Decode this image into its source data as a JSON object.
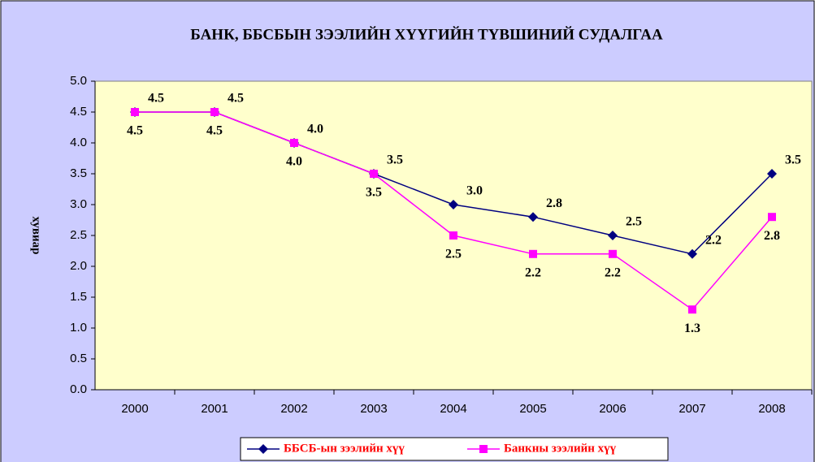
{
  "chart_data": {
    "type": "line",
    "title": "БАНК, ББСБЫН ЗЭЭЛИЙН ХҮҮГИЙН ТҮВШИНИЙ СУДАЛГАА",
    "y_label": "хувиар",
    "categories": [
      "2000",
      "2001",
      "2002",
      "2003",
      "2004",
      "2005",
      "2006",
      "2007",
      "2008"
    ],
    "series": [
      {
        "name": "ББСБ-ын зээлийн хүү",
        "color": "#000080",
        "marker": "diamond",
        "values": [
          4.5,
          4.5,
          4.0,
          3.5,
          3.0,
          2.8,
          2.5,
          2.2,
          3.5
        ],
        "value_labels": [
          "4.5",
          "4.5",
          "4.0",
          "3.5",
          "3.0",
          "2.8",
          "2.5",
          "2.2",
          "3.5"
        ]
      },
      {
        "name": "Банкны зээлийн хүү",
        "color": "#ff00ff",
        "marker": "square",
        "values": [
          4.5,
          4.5,
          4.0,
          3.5,
          2.5,
          2.2,
          2.2,
          1.3,
          2.8
        ],
        "value_labels": [
          "4.5",
          "4.5",
          "4.0",
          "3.5",
          "2.5",
          "2.2",
          "2.2",
          "1.3",
          "2.8"
        ]
      }
    ],
    "ylim": [
      0,
      5
    ],
    "yticks": [
      {
        "value": 0,
        "label": "0.0"
      },
      {
        "value": 0.5,
        "label": "0.5"
      },
      {
        "value": 1,
        "label": "1.0"
      },
      {
        "value": 1.5,
        "label": "1.5"
      },
      {
        "value": 2,
        "label": "2.0"
      },
      {
        "value": 2.5,
        "label": "2.5"
      },
      {
        "value": 3,
        "label": "3.0"
      },
      {
        "value": 3.5,
        "label": "3.5"
      },
      {
        "value": 4,
        "label": "4.0"
      },
      {
        "value": 4.5,
        "label": "4.5"
      },
      {
        "value": 5,
        "label": "5.0"
      }
    ],
    "grid": false,
    "legend": "bottom"
  }
}
